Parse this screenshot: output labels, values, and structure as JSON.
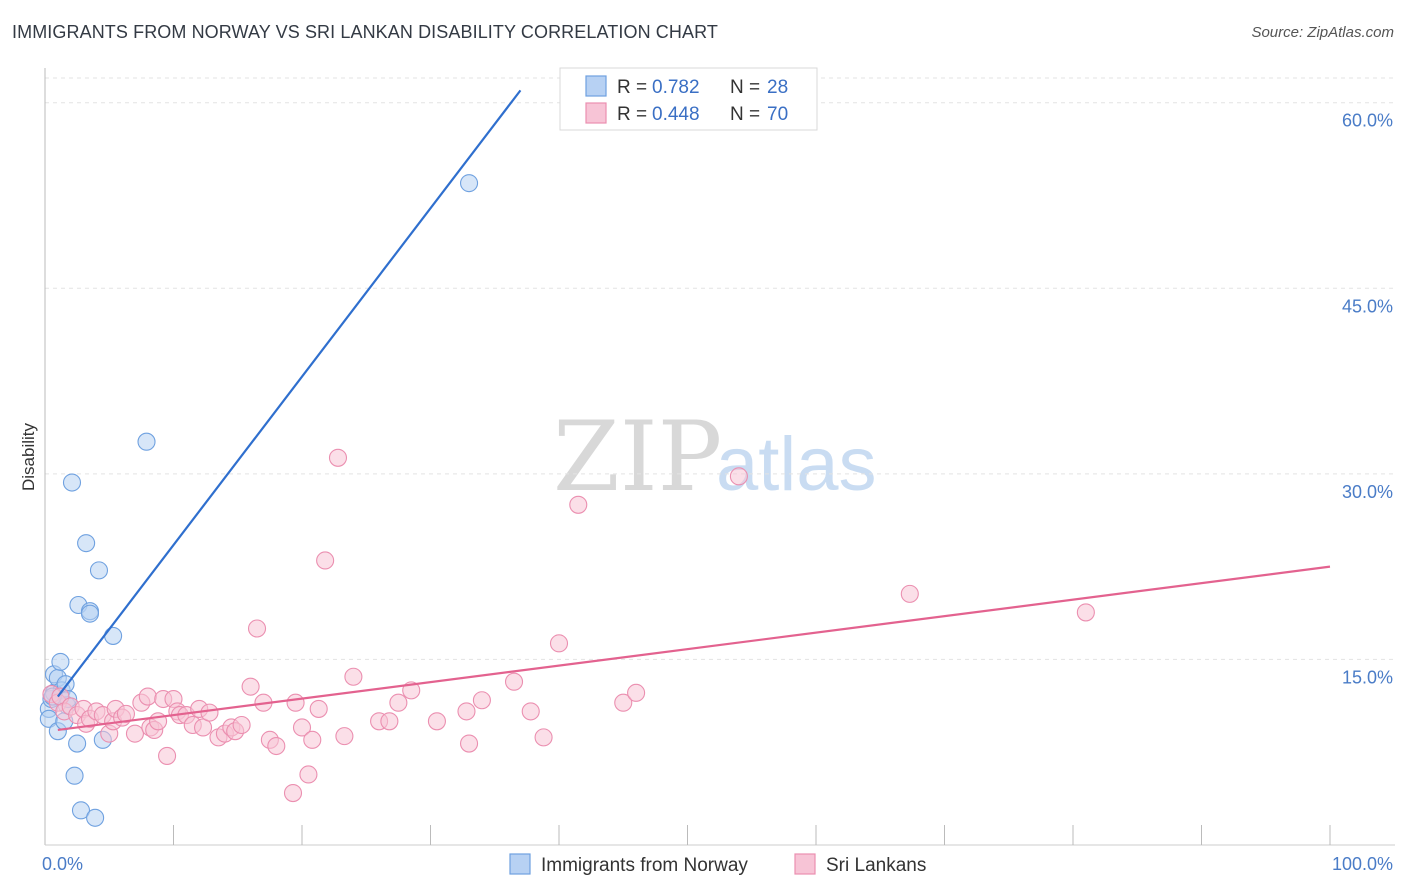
{
  "header": {
    "title": "IMMIGRANTS FROM NORWAY VS SRI LANKAN DISABILITY CORRELATION CHART",
    "source": "Source: ZipAtlas.com"
  },
  "watermark": {
    "zip": "ZIP",
    "atlas": "atlas"
  },
  "chart_data": {
    "type": "scatter",
    "title": "IMMIGRANTS FROM NORWAY VS SRI LANKAN DISABILITY CORRELATION CHART",
    "xlabel": "",
    "ylabel": "Disability",
    "xlim": [
      0,
      100
    ],
    "ylim": [
      0,
      62
    ],
    "x_tick_labels": {
      "min": "0.0%",
      "max": "100.0%"
    },
    "y_ticks": [
      {
        "value": 15,
        "label": "15.0%"
      },
      {
        "value": 30,
        "label": "30.0%"
      },
      {
        "value": 45,
        "label": "45.0%"
      },
      {
        "value": 60,
        "label": "60.0%"
      }
    ],
    "legend_position": "top-center",
    "series": [
      {
        "name": "Immigrants from Norway",
        "color": "#6fa1e0",
        "fill": "#b7d1f3",
        "line_color": "#2f6fce",
        "R": "0.782",
        "N": "28",
        "trend": {
          "x0": 1.0,
          "y0": 12.0,
          "x1": 37.0,
          "y1": 61.0
        },
        "points": [
          [
            0.3,
            11.0
          ],
          [
            0.3,
            10.2
          ],
          [
            0.5,
            11.8
          ],
          [
            0.7,
            12.3
          ],
          [
            0.7,
            13.8
          ],
          [
            1.0,
            13.5
          ],
          [
            1.0,
            9.2
          ],
          [
            1.2,
            14.8
          ],
          [
            1.3,
            12.5
          ],
          [
            1.5,
            10.0
          ],
          [
            1.6,
            13.0
          ],
          [
            1.7,
            11.3
          ],
          [
            1.8,
            11.8
          ],
          [
            2.1,
            29.3
          ],
          [
            2.3,
            5.6
          ],
          [
            2.5,
            8.2
          ],
          [
            2.6,
            19.4
          ],
          [
            2.8,
            2.8
          ],
          [
            3.2,
            24.4
          ],
          [
            3.5,
            18.9
          ],
          [
            3.5,
            18.7
          ],
          [
            3.9,
            2.2
          ],
          [
            4.2,
            22.2
          ],
          [
            4.5,
            8.5
          ],
          [
            5.3,
            16.9
          ],
          [
            7.9,
            32.6
          ],
          [
            33.0,
            53.5
          ],
          [
            0.6,
            12.0
          ]
        ]
      },
      {
        "name": "Sri Lankans",
        "color": "#eb8fb0",
        "fill": "#f7c4d6",
        "line_color": "#e3628f",
        "R": "0.448",
        "N": "70",
        "trend": {
          "x0": 1.0,
          "y0": 9.3,
          "x1": 100.0,
          "y1": 22.5
        },
        "points": [
          [
            0.5,
            12.2
          ],
          [
            1.0,
            11.5
          ],
          [
            1.2,
            12.0
          ],
          [
            1.5,
            10.8
          ],
          [
            2.0,
            11.2
          ],
          [
            2.5,
            10.5
          ],
          [
            3.0,
            11.0
          ],
          [
            3.2,
            9.8
          ],
          [
            3.5,
            10.2
          ],
          [
            4.0,
            10.8
          ],
          [
            4.5,
            10.5
          ],
          [
            5.0,
            9.0
          ],
          [
            5.3,
            10.0
          ],
          [
            5.5,
            11.0
          ],
          [
            6.0,
            10.3
          ],
          [
            6.3,
            10.6
          ],
          [
            7.0,
            9.0
          ],
          [
            7.5,
            11.5
          ],
          [
            8.0,
            12.0
          ],
          [
            8.2,
            9.5
          ],
          [
            8.5,
            9.3
          ],
          [
            8.8,
            10.0
          ],
          [
            9.2,
            11.8
          ],
          [
            9.5,
            7.2
          ],
          [
            10.0,
            11.8
          ],
          [
            10.3,
            10.8
          ],
          [
            10.5,
            10.5
          ],
          [
            11.0,
            10.5
          ],
          [
            11.5,
            9.7
          ],
          [
            12.0,
            11.0
          ],
          [
            12.3,
            9.5
          ],
          [
            12.8,
            10.7
          ],
          [
            13.5,
            8.7
          ],
          [
            14.0,
            9.0
          ],
          [
            14.5,
            9.5
          ],
          [
            14.8,
            9.2
          ],
          [
            15.3,
            9.7
          ],
          [
            16.0,
            12.8
          ],
          [
            16.5,
            17.5
          ],
          [
            17.0,
            11.5
          ],
          [
            17.5,
            8.5
          ],
          [
            18.0,
            8.0
          ],
          [
            19.3,
            4.2
          ],
          [
            19.5,
            11.5
          ],
          [
            20.0,
            9.5
          ],
          [
            20.5,
            5.7
          ],
          [
            20.8,
            8.5
          ],
          [
            21.3,
            11.0
          ],
          [
            21.8,
            23.0
          ],
          [
            22.8,
            31.3
          ],
          [
            23.3,
            8.8
          ],
          [
            24.0,
            13.6
          ],
          [
            26.0,
            10.0
          ],
          [
            26.8,
            10.0
          ],
          [
            27.5,
            11.5
          ],
          [
            28.5,
            12.5
          ],
          [
            30.5,
            10.0
          ],
          [
            32.8,
            10.8
          ],
          [
            33.0,
            8.2
          ],
          [
            34.0,
            11.7
          ],
          [
            36.5,
            13.2
          ],
          [
            37.8,
            10.8
          ],
          [
            38.8,
            8.7
          ],
          [
            40.0,
            16.3
          ],
          [
            41.5,
            27.5
          ],
          [
            45.0,
            11.5
          ],
          [
            46.0,
            12.3
          ],
          [
            54.0,
            29.8
          ],
          [
            67.3,
            20.3
          ],
          [
            81.0,
            18.8
          ]
        ]
      }
    ]
  }
}
